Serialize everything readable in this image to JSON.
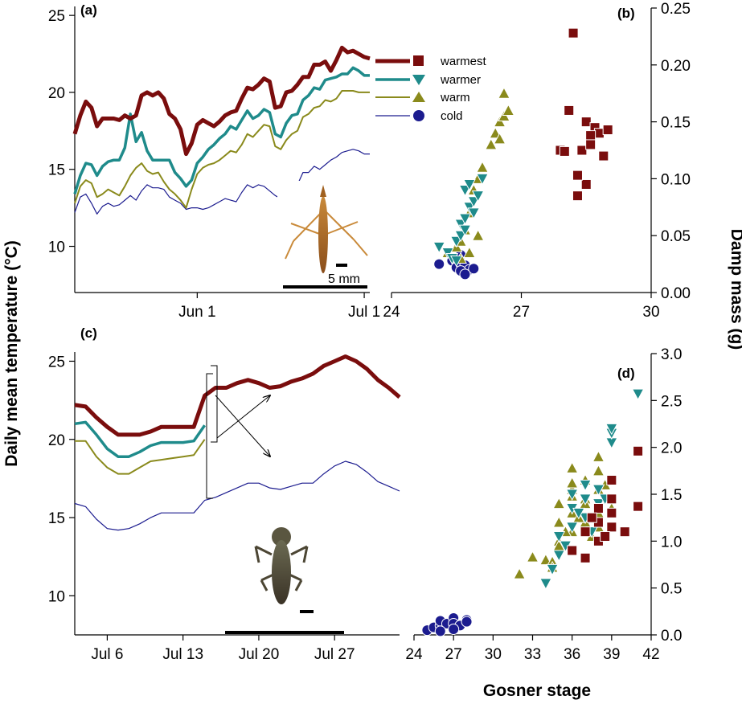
{
  "colors": {
    "warmest": "#7a0d0d",
    "warmer": "#1f8b8b",
    "warm": "#8a8a1c",
    "cold": "#1c1c8f",
    "axis": "#000000"
  },
  "legend": {
    "warmest": "warmest",
    "warmer": "warmer",
    "warm": "warm",
    "cold": "cold"
  },
  "labels": {
    "a": "(a)",
    "b": "(b)",
    "c": "(c)",
    "d": "(d)",
    "y_left": "Daily mean temperature (°C)",
    "y_right": "Damp mass (g)",
    "x_bottom": "Gosner stage",
    "scale_bar": "5 mm"
  },
  "icons": {
    "tadpole_stage_b": "tadpole-photo-icon",
    "tadpole_stage_d": "froglet-photo-icon"
  },
  "chart_data": [
    {
      "panel": "a",
      "type": "line",
      "x_ticks": [
        "Jun 1",
        "Jul 1"
      ],
      "x_tick_day": [
        22,
        52
      ],
      "xlim": [
        0,
        53
      ],
      "ylim": [
        7,
        26
      ],
      "y_ticks": [
        10,
        15,
        20,
        25
      ],
      "series": [
        {
          "name": "warmest",
          "x": [
            0,
            1,
            2,
            3,
            4,
            5,
            6,
            7,
            8,
            9,
            10,
            11,
            12,
            13,
            14,
            15,
            16,
            17,
            18,
            19,
            20,
            21,
            22,
            23,
            24,
            25,
            26,
            27,
            28,
            29,
            30,
            31,
            32,
            33,
            34,
            35,
            36,
            37,
            38,
            39,
            40,
            41,
            42,
            43,
            44,
            45,
            46,
            47,
            48,
            49,
            50,
            51,
            52,
            53
          ],
          "y": [
            17.3,
            18.5,
            19.4,
            19.0,
            17.8,
            18.3,
            18.3,
            18.3,
            18.2,
            18.5,
            18.3,
            18.5,
            19.8,
            20.0,
            19.8,
            20.0,
            19.6,
            18.6,
            18.3,
            17.6,
            16.0,
            16.7,
            17.9,
            18.2,
            18.0,
            17.8,
            18.1,
            18.5,
            18.7,
            18.8,
            19.6,
            20.3,
            20.2,
            20.5,
            20.9,
            20.7,
            19.0,
            19.1,
            20.0,
            20.1,
            20.5,
            21.0,
            21.0,
            21.8,
            21.8,
            22.0,
            21.4,
            22.1,
            22.9,
            22.6,
            22.7,
            22.5,
            22.3,
            22.2
          ]
        },
        {
          "name": "warmer",
          "x": [
            0,
            1,
            2,
            3,
            4,
            5,
            6,
            7,
            8,
            9,
            10,
            11,
            12,
            13,
            14,
            15,
            16,
            17,
            18,
            19,
            20,
            21,
            22,
            23,
            24,
            25,
            26,
            27,
            28,
            29,
            30,
            31,
            32,
            33,
            34,
            35,
            36,
            37,
            38,
            39,
            40,
            41,
            42,
            43,
            44,
            45,
            46,
            47,
            48,
            49,
            50,
            51,
            52,
            53
          ],
          "y": [
            13.4,
            14.6,
            15.4,
            15.3,
            14.6,
            15.2,
            15.5,
            15.6,
            15.6,
            16.4,
            18.6,
            16.8,
            17.4,
            16.2,
            15.6,
            15.6,
            15.6,
            15.6,
            14.8,
            14.4,
            13.9,
            14.3,
            15.4,
            15.8,
            16.3,
            16.6,
            17.0,
            17.3,
            17.8,
            17.6,
            18.2,
            18.8,
            18.3,
            18.5,
            18.9,
            18.7,
            17.3,
            17.1,
            18.0,
            18.5,
            18.6,
            19.5,
            19.8,
            20.3,
            20.2,
            20.8,
            20.9,
            21.0,
            21.2,
            21.2,
            21.6,
            21.4,
            21.1,
            21.1
          ]
        },
        {
          "name": "warm",
          "x": [
            0,
            1,
            2,
            3,
            4,
            5,
            6,
            7,
            8,
            9,
            10,
            11,
            12,
            13,
            14,
            15,
            16,
            17,
            18,
            19,
            20,
            21,
            22,
            23,
            24,
            25,
            26,
            27,
            28,
            29,
            30,
            31,
            32,
            33,
            34,
            35,
            36,
            37,
            38,
            39,
            40,
            41,
            42,
            43,
            44,
            45,
            46,
            47,
            48,
            49,
            50,
            51,
            52,
            53
          ],
          "y": [
            12.8,
            13.9,
            14.3,
            14.1,
            13.2,
            13.4,
            13.7,
            13.5,
            13.3,
            13.9,
            14.6,
            15.1,
            15.4,
            14.9,
            14.7,
            14.8,
            14.2,
            13.7,
            13.4,
            13.0,
            12.5,
            13.7,
            14.7,
            15.1,
            15.3,
            15.4,
            15.6,
            15.9,
            16.2,
            16.1,
            16.6,
            17.3,
            17.1,
            17.5,
            17.9,
            17.8,
            16.5,
            16.3,
            16.9,
            17.3,
            17.5,
            18.4,
            18.6,
            19.0,
            19.1,
            19.5,
            19.4,
            19.6,
            20.1,
            20.1,
            20.1,
            20.0,
            20.0,
            20.0
          ]
        },
        {
          "name": "cold",
          "x": [
            0,
            1,
            2,
            3,
            4,
            5,
            6,
            7,
            8,
            9,
            10,
            11,
            12,
            13,
            14,
            15,
            16,
            17,
            18,
            19,
            20,
            21,
            22,
            23,
            24,
            25,
            26,
            27,
            28,
            29,
            30,
            31,
            32,
            33,
            34,
            35,
            36,
            37,
            38,
            39,
            40,
            41,
            42,
            43,
            44,
            45,
            46,
            47,
            48,
            49,
            50,
            51,
            52,
            53
          ],
          "y": [
            12.2,
            13.2,
            13.4,
            12.8,
            12.1,
            12.6,
            12.8,
            12.6,
            12.7,
            13.0,
            13.3,
            13.0,
            13.6,
            14.0,
            13.8,
            13.8,
            13.7,
            13.2,
            13.0,
            12.8,
            12.4,
            12.5,
            12.5,
            12.4,
            12.5,
            12.7,
            12.9,
            13.1,
            13.0,
            12.9,
            13.5,
            14.0,
            13.8,
            14.0,
            13.9,
            13.6,
            13.3,
            13.1,
            13.5,
            13.9,
            14.0,
            14.8,
            14.8,
            15.2,
            15.0,
            15.3,
            15.6,
            15.8,
            16.1,
            16.2,
            16.3,
            16.2,
            16.0,
            16.0
          ]
        }
      ]
    },
    {
      "panel": "b",
      "type": "scatter",
      "xlim": [
        24,
        30
      ],
      "x_ticks": [
        24,
        27,
        30
      ],
      "ylim": [
        0,
        0.25
      ],
      "y_ticks": [
        0.0,
        0.05,
        0.1,
        0.15,
        0.2,
        0.25
      ],
      "series": [
        {
          "name": "cold",
          "marker": "circle",
          "x": [
            25.1,
            25.4,
            25.5,
            25.6,
            25.7,
            25.8,
            25.9,
            25.5,
            25.6,
            25.7,
            25.6
          ],
          "y": [
            0.025,
            0.028,
            0.022,
            0.026,
            0.024,
            0.02,
            0.021,
            0.03,
            0.019,
            0.016,
            0.033
          ]
        },
        {
          "name": "warm",
          "marker": "triangle-up",
          "x": [
            25.3,
            25.5,
            25.6,
            25.7,
            25.8,
            25.9,
            26.0,
            26.1,
            26.3,
            26.4,
            26.5,
            26.6,
            26.7,
            26.6,
            26.5,
            25.8,
            26.0,
            25.6
          ],
          "y": [
            0.035,
            0.04,
            0.045,
            0.055,
            0.07,
            0.09,
            0.1,
            0.11,
            0.13,
            0.14,
            0.15,
            0.155,
            0.16,
            0.175,
            0.135,
            0.035,
            0.05,
            0.03
          ]
        },
        {
          "name": "warmer",
          "marker": "triangle-down",
          "x": [
            25.1,
            25.3,
            25.4,
            25.5,
            25.6,
            25.7,
            25.8,
            25.9,
            26.0,
            26.1,
            25.7,
            25.8,
            25.9,
            25.6,
            25.5,
            25.7
          ],
          "y": [
            0.04,
            0.035,
            0.03,
            0.045,
            0.06,
            0.065,
            0.075,
            0.08,
            0.085,
            0.1,
            0.09,
            0.095,
            0.07,
            0.05,
            0.028,
            0.055
          ]
        },
        {
          "name": "warmest",
          "marker": "square",
          "x": [
            28.2,
            27.9,
            28.0,
            28.5,
            28.7,
            28.8,
            29.0,
            28.4,
            28.6,
            28.9,
            28.3,
            28.5,
            28.1,
            28.3,
            28.6
          ],
          "y": [
            0.228,
            0.125,
            0.124,
            0.15,
            0.145,
            0.14,
            0.143,
            0.125,
            0.138,
            0.12,
            0.085,
            0.095,
            0.16,
            0.103,
            0.13
          ]
        }
      ]
    },
    {
      "panel": "c",
      "type": "line",
      "x_ticks": [
        "Jul 6",
        "Jul 13",
        "Jul 20",
        "Jul 27"
      ],
      "x_tick_day": [
        6,
        13,
        20,
        27
      ],
      "xlim": [
        3,
        33
      ],
      "ylim": [
        7.5,
        26
      ],
      "y_ticks": [
        10,
        15,
        20,
        25
      ],
      "series": [
        {
          "name": "warmest",
          "x": [
            3,
            4,
            5,
            6,
            7,
            8,
            9,
            10,
            11,
            12,
            13,
            14,
            15,
            16,
            17,
            18,
            19,
            20,
            21,
            22,
            23,
            24,
            25,
            26,
            27,
            28,
            29,
            30,
            31,
            32,
            33
          ],
          "y": [
            22.2,
            22.1,
            21.4,
            20.8,
            20.3,
            20.3,
            20.3,
            20.5,
            20.8,
            20.8,
            20.8,
            20.8,
            22.8,
            23.3,
            23.3,
            23.6,
            23.8,
            23.6,
            23.3,
            23.4,
            23.7,
            23.9,
            24.2,
            24.7,
            25.0,
            25.3,
            25.0,
            24.5,
            23.8,
            23.3,
            22.7
          ]
        },
        {
          "name": "warmer",
          "x": [
            3,
            4,
            5,
            6,
            7,
            8,
            9,
            10,
            11,
            12,
            13,
            14,
            15
          ],
          "y": [
            21.0,
            21.1,
            20.3,
            19.4,
            18.9,
            18.9,
            19.2,
            19.6,
            19.8,
            19.8,
            19.8,
            19.9,
            20.9
          ]
        },
        {
          "name": "warm",
          "x": [
            3,
            4,
            5,
            6,
            7,
            8,
            9,
            10,
            11,
            12,
            13,
            14,
            15
          ],
          "y": [
            19.9,
            19.9,
            18.9,
            18.2,
            17.8,
            17.8,
            18.2,
            18.6,
            18.7,
            18.8,
            18.9,
            19.0,
            20.0
          ]
        },
        {
          "name": "cold",
          "x": [
            3,
            4,
            5,
            6,
            7,
            8,
            9,
            10,
            11,
            12,
            13,
            14,
            15,
            16,
            17,
            18,
            19,
            20,
            21,
            22,
            23,
            24,
            25,
            26,
            27,
            28,
            29,
            30,
            31,
            32,
            33
          ],
          "y": [
            15.9,
            15.7,
            14.9,
            14.3,
            14.2,
            14.3,
            14.6,
            15.0,
            15.3,
            15.3,
            15.3,
            15.3,
            16.1,
            16.3,
            16.6,
            16.9,
            17.2,
            17.2,
            16.9,
            16.8,
            17.0,
            17.2,
            17.2,
            17.8,
            18.3,
            18.6,
            18.4,
            17.9,
            17.3,
            17.0,
            16.7
          ]
        }
      ]
    },
    {
      "panel": "d",
      "type": "scatter",
      "xlim": [
        24,
        42
      ],
      "x_ticks": [
        24,
        27,
        30,
        33,
        36,
        39,
        42
      ],
      "ylim": [
        0,
        3.0
      ],
      "y_ticks": [
        0.0,
        0.5,
        1.0,
        1.5,
        2.0,
        2.5,
        3.0
      ],
      "series": [
        {
          "name": "cold",
          "marker": "circle",
          "x": [
            25.0,
            25.5,
            26.0,
            26.0,
            26.5,
            27.0,
            27.0,
            27.5,
            28.0,
            28.0,
            26.0,
            27.0
          ],
          "y": [
            0.05,
            0.08,
            0.1,
            0.15,
            0.12,
            0.18,
            0.12,
            0.1,
            0.16,
            0.14,
            0.04,
            0.06
          ]
        },
        {
          "name": "warm",
          "marker": "triangle-up",
          "x": [
            32.0,
            33.0,
            34.0,
            34.5,
            35.0,
            35.0,
            35.0,
            36.0,
            36.0,
            36.0,
            36.0,
            37.0,
            37.0,
            37.0,
            38.0,
            38.0,
            38.0,
            38.0,
            39.0,
            39.0,
            35.5,
            36.5,
            37.5,
            38.5,
            34.5,
            36.0,
            37.0,
            38.0,
            35.0,
            36.0
          ],
          "y": [
            0.65,
            0.83,
            0.8,
            0.78,
            1.0,
            1.2,
            1.4,
            1.1,
            1.3,
            1.55,
            1.78,
            1.2,
            1.45,
            1.65,
            1.3,
            1.55,
            1.75,
            1.9,
            1.45,
            1.35,
            1.1,
            1.25,
            1.05,
            1.6,
            0.72,
            1.62,
            1.4,
            1.15,
            0.95,
            1.48
          ]
        },
        {
          "name": "warmer",
          "marker": "triangle-down",
          "x": [
            34.0,
            34.5,
            35.0,
            35.0,
            36.0,
            36.0,
            36.0,
            37.0,
            37.0,
            37.0,
            38.0,
            38.0,
            39.0,
            39.0,
            39.0,
            41.0,
            35.5,
            36.5,
            37.5,
            38.5
          ],
          "y": [
            0.55,
            0.7,
            0.85,
            1.05,
            1.15,
            1.35,
            1.5,
            1.25,
            1.45,
            1.6,
            1.4,
            1.55,
            2.05,
            2.15,
            2.2,
            2.57,
            0.95,
            1.3,
            1.1,
            1.45
          ]
        },
        {
          "name": "warmest",
          "marker": "square",
          "x": [
            36.0,
            37.0,
            37.0,
            38.0,
            38.0,
            38.0,
            39.0,
            39.0,
            39.0,
            39.0,
            40.0,
            41.0,
            41.0,
            37.5,
            38.5
          ],
          "y": [
            0.9,
            0.82,
            1.1,
            1.0,
            1.2,
            1.35,
            1.15,
            1.3,
            1.45,
            1.65,
            1.1,
            1.37,
            1.96,
            1.25,
            1.05
          ]
        }
      ]
    }
  ]
}
